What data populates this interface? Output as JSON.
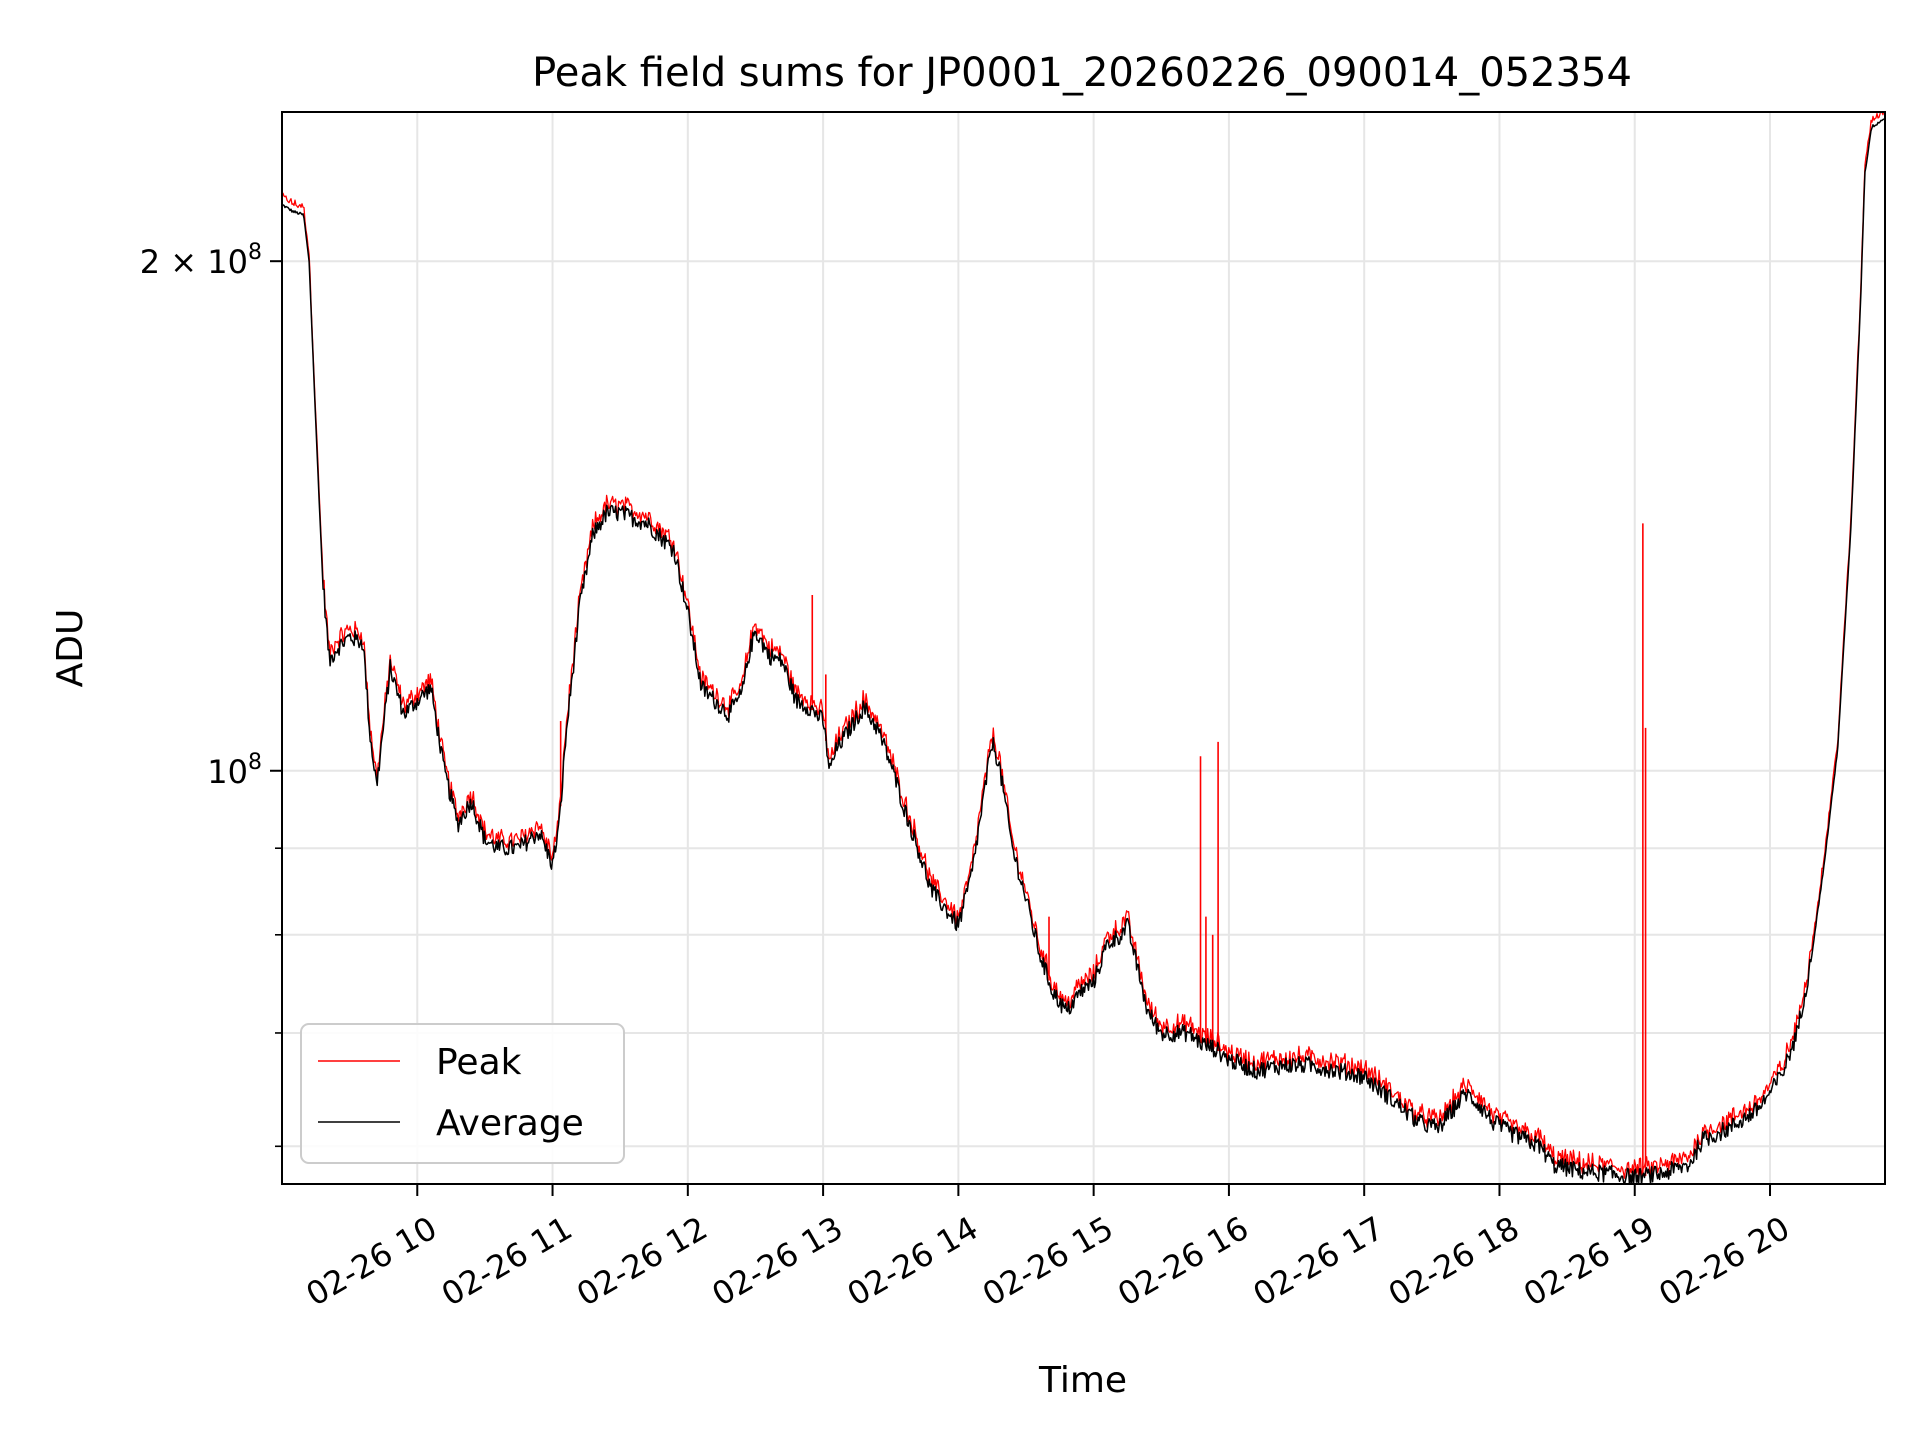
{
  "chart_data": {
    "type": "line",
    "title": "Peak field sums for JP0001_20260226_090014_052354",
    "xlabel": "Time",
    "ylabel": "ADU",
    "y_scale": "log",
    "xlim_hours": [
      9.0,
      20.85
    ],
    "ylim": [
      57000000,
      245000000
    ],
    "grid": true,
    "x_ticks": [
      {
        "hour": 10,
        "label": "02-26 10"
      },
      {
        "hour": 11,
        "label": "02-26 11"
      },
      {
        "hour": 12,
        "label": "02-26 12"
      },
      {
        "hour": 13,
        "label": "02-26 13"
      },
      {
        "hour": 14,
        "label": "02-26 14"
      },
      {
        "hour": 15,
        "label": "02-26 15"
      },
      {
        "hour": 16,
        "label": "02-26 16"
      },
      {
        "hour": 17,
        "label": "02-26 17"
      },
      {
        "hour": 18,
        "label": "02-26 18"
      },
      {
        "hour": 19,
        "label": "02-26 19"
      },
      {
        "hour": 20,
        "label": "02-26 20"
      }
    ],
    "y_major_ticks": [
      {
        "value": 100000000,
        "base": "10",
        "exp": "8"
      },
      {
        "value": 200000000,
        "base": "2 × 10",
        "exp": "8"
      }
    ],
    "y_minor_ticks": [
      60000000,
      70000000,
      80000000,
      90000000
    ],
    "legend": {
      "position": "lower-left"
    },
    "series": [
      {
        "name": "Peak",
        "color": "#ff0000"
      },
      {
        "name": "Average",
        "color": "#000000"
      }
    ],
    "average_points": [
      [
        9.0,
        216000000
      ],
      [
        9.08,
        214000000
      ],
      [
        9.16,
        213000000
      ],
      [
        9.2,
        200000000
      ],
      [
        9.25,
        160000000
      ],
      [
        9.3,
        130000000
      ],
      [
        9.35,
        116000000
      ],
      [
        9.4,
        118000000
      ],
      [
        9.5,
        120000000
      ],
      [
        9.6,
        119000000
      ],
      [
        9.65,
        105000000
      ],
      [
        9.7,
        98000000
      ],
      [
        9.8,
        115000000
      ],
      [
        9.9,
        108000000
      ],
      [
        10.0,
        110000000
      ],
      [
        10.1,
        112000000
      ],
      [
        10.2,
        100000000
      ],
      [
        10.3,
        93000000
      ],
      [
        10.4,
        96000000
      ],
      [
        10.5,
        91000000
      ],
      [
        10.6,
        90000000
      ],
      [
        10.75,
        90000000
      ],
      [
        10.9,
        92000000
      ],
      [
        11.0,
        88000000
      ],
      [
        11.05,
        93000000
      ],
      [
        11.1,
        105000000
      ],
      [
        11.2,
        125000000
      ],
      [
        11.3,
        138000000
      ],
      [
        11.4,
        142000000
      ],
      [
        11.5,
        142000000
      ],
      [
        11.7,
        140000000
      ],
      [
        11.9,
        135000000
      ],
      [
        12.0,
        124000000
      ],
      [
        12.1,
        112000000
      ],
      [
        12.2,
        110000000
      ],
      [
        12.3,
        108000000
      ],
      [
        12.4,
        111000000
      ],
      [
        12.45,
        117000000
      ],
      [
        12.5,
        121000000
      ],
      [
        12.6,
        117000000
      ],
      [
        12.7,
        116000000
      ],
      [
        12.8,
        110000000
      ],
      [
        12.9,
        109000000
      ],
      [
        13.0,
        107000000
      ],
      [
        13.05,
        100000000
      ],
      [
        13.1,
        103000000
      ],
      [
        13.2,
        106000000
      ],
      [
        13.3,
        109000000
      ],
      [
        13.4,
        106000000
      ],
      [
        13.5,
        101000000
      ],
      [
        13.6,
        95000000
      ],
      [
        13.7,
        90000000
      ],
      [
        13.8,
        85000000
      ],
      [
        13.9,
        83000000
      ],
      [
        14.0,
        81000000
      ],
      [
        14.1,
        87000000
      ],
      [
        14.2,
        98000000
      ],
      [
        14.25,
        104000000
      ],
      [
        14.3,
        101000000
      ],
      [
        14.4,
        90000000
      ],
      [
        14.5,
        84000000
      ],
      [
        14.6,
        78000000
      ],
      [
        14.7,
        74000000
      ],
      [
        14.8,
        72000000
      ],
      [
        14.9,
        74000000
      ],
      [
        15.0,
        75000000
      ],
      [
        15.1,
        79000000
      ],
      [
        15.2,
        80000000
      ],
      [
        15.25,
        81000000
      ],
      [
        15.3,
        78000000
      ],
      [
        15.4,
        72000000
      ],
      [
        15.5,
        70000000
      ],
      [
        15.6,
        70000000
      ],
      [
        15.7,
        70000000
      ],
      [
        15.8,
        69000000
      ],
      [
        15.9,
        68500000
      ],
      [
        16.0,
        67500000
      ],
      [
        16.2,
        66500000
      ],
      [
        16.4,
        67000000
      ],
      [
        16.6,
        67000000
      ],
      [
        16.8,
        66500000
      ],
      [
        17.0,
        66000000
      ],
      [
        17.2,
        64000000
      ],
      [
        17.4,
        62000000
      ],
      [
        17.55,
        61500000
      ],
      [
        17.65,
        63000000
      ],
      [
        17.75,
        64500000
      ],
      [
        17.85,
        63500000
      ],
      [
        17.95,
        62000000
      ],
      [
        18.1,
        61000000
      ],
      [
        18.3,
        60000000
      ],
      [
        18.4,
        58500000
      ],
      [
        18.6,
        58000000
      ],
      [
        18.8,
        57800000
      ],
      [
        19.0,
        57500000
      ],
      [
        19.2,
        57800000
      ],
      [
        19.4,
        58500000
      ],
      [
        19.5,
        60500000
      ],
      [
        19.7,
        61500000
      ],
      [
        19.9,
        63000000
      ],
      [
        20.0,
        64500000
      ],
      [
        20.1,
        66500000
      ],
      [
        20.2,
        70000000
      ],
      [
        20.3,
        77000000
      ],
      [
        20.4,
        88000000
      ],
      [
        20.5,
        103000000
      ],
      [
        20.6,
        140000000
      ],
      [
        20.67,
        190000000
      ],
      [
        20.7,
        225000000
      ],
      [
        20.75,
        240000000
      ],
      [
        20.85,
        243000000
      ]
    ],
    "peak_spikes": [
      {
        "hour": 11.06,
        "value": 107000000
      },
      {
        "hour": 12.92,
        "value": 127000000
      },
      {
        "hour": 13.02,
        "value": 114000000
      },
      {
        "hour": 14.67,
        "value": 82000000
      },
      {
        "hour": 15.79,
        "value": 102000000
      },
      {
        "hour": 15.83,
        "value": 82000000
      },
      {
        "hour": 15.88,
        "value": 80000000
      },
      {
        "hour": 15.92,
        "value": 104000000
      },
      {
        "hour": 19.06,
        "value": 140000000
      },
      {
        "hour": 19.08,
        "value": 106000000
      }
    ]
  }
}
